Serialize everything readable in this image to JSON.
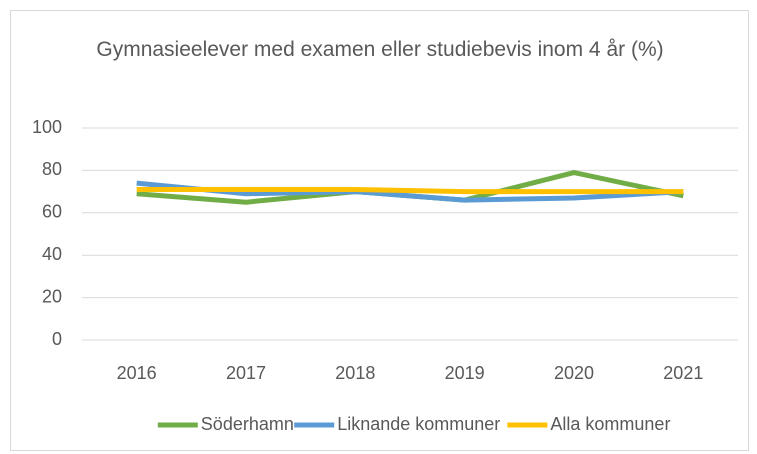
{
  "chart_data": {
    "type": "line",
    "title": "Gymnasieelever med examen eller studiebevis inom 4 år (%)",
    "categories": [
      "2016",
      "2017",
      "2018",
      "2019",
      "2020",
      "2021"
    ],
    "series": [
      {
        "name": "Söderhamn",
        "color": "#70ad47",
        "values": [
          69,
          65,
          70,
          66,
          79,
          68
        ]
      },
      {
        "name": "Liknande kommuner",
        "color": "#5b9bd5",
        "values": [
          74,
          69,
          70,
          66,
          67,
          70
        ]
      },
      {
        "name": "Alla kommuner",
        "color": "#ffc000",
        "values": [
          71,
          71,
          71,
          70,
          70,
          70
        ]
      }
    ],
    "ylim": [
      0,
      100
    ],
    "yticks": [
      0,
      20,
      40,
      60,
      80,
      100
    ],
    "grid": true,
    "legend": "bottom"
  }
}
